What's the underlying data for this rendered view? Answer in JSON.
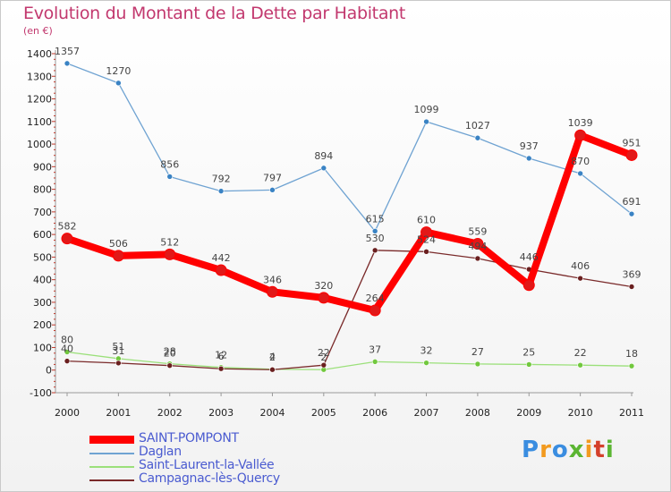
{
  "page": {
    "title": "Evolution du Montant de la Dette par Habitant",
    "unit": "(en €)",
    "logo": "Proxiti"
  },
  "chart_data": {
    "type": "line",
    "title": "Evolution du Montant de la Dette par Habitant",
    "ylabel": "(en €)",
    "xlabel": "",
    "x": [
      "2000",
      "2001",
      "2002",
      "2003",
      "2004",
      "2005",
      "2006",
      "2007",
      "2008",
      "2009",
      "2010",
      "2011"
    ],
    "ylim": [
      -100,
      1400
    ],
    "yticks": [
      -100,
      0,
      100,
      200,
      300,
      400,
      500,
      600,
      700,
      800,
      900,
      1000,
      1100,
      1200,
      1300,
      1400
    ],
    "grid": false,
    "legend_position": "bottom-left",
    "series": [
      {
        "name": "SAINT-POMPONT",
        "color": "#ff0000",
        "marker": "#e21818",
        "values": [
          582,
          506,
          512,
          442,
          346,
          320,
          264,
          610,
          559,
          376,
          1039,
          951
        ],
        "labels": [
          "582",
          "506",
          "512",
          "442",
          "346",
          "320",
          "264",
          "610",
          "559",
          "",
          "1039",
          "951"
        ]
      },
      {
        "name": "Daglan",
        "color": "#6fa3d2",
        "marker": "#3a83c4",
        "values": [
          1357,
          1270,
          856,
          792,
          797,
          894,
          615,
          1099,
          1027,
          937,
          870,
          691
        ],
        "labels": [
          "1357",
          "1270",
          "856",
          "792",
          "797",
          "894",
          "615",
          "1099",
          "1027",
          "937",
          "870",
          "691"
        ]
      },
      {
        "name": "Saint-Laurent-la-Vallée",
        "color": "#9be07a",
        "marker": "#72c83e",
        "values": [
          80,
          51,
          28,
          12,
          4,
          2,
          37,
          32,
          27,
          25,
          22,
          18
        ],
        "labels": [
          "80",
          "51",
          "28",
          "12",
          "4",
          "2",
          "37",
          "32",
          "27",
          "25",
          "22",
          "18"
        ]
      },
      {
        "name": "Campagnac-lès-Quercy",
        "color": "#7a2a2a",
        "marker": "#6a1f1f",
        "values": [
          40,
          31,
          20,
          6,
          2,
          22,
          530,
          524,
          494,
          446,
          406,
          369
        ],
        "labels": [
          "40",
          "31",
          "20",
          "6",
          "2",
          "22",
          "530",
          "524",
          "494",
          "446",
          "406",
          "369"
        ]
      }
    ]
  }
}
